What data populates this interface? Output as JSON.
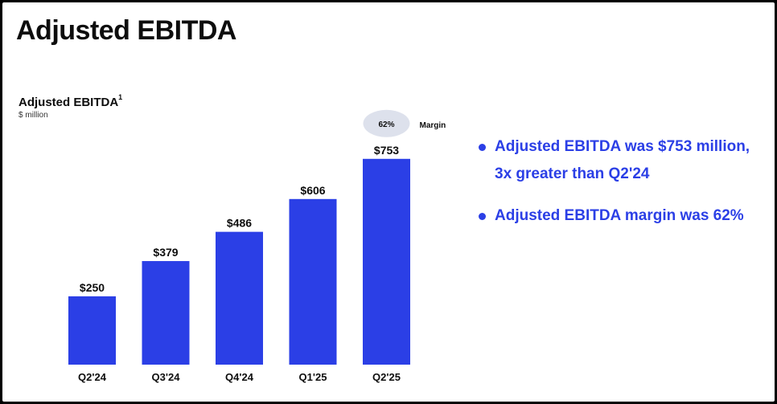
{
  "page": {
    "title": "Adjusted EBITDA"
  },
  "chart_heading": {
    "title": "Adjusted EBITDA",
    "footnote": "1",
    "unit": "$ million"
  },
  "chart_data": {
    "type": "bar",
    "title": "Adjusted EBITDA",
    "ylabel": "$ million",
    "categories": [
      "Q2'24",
      "Q3'24",
      "Q4'24",
      "Q1'25",
      "Q2'25"
    ],
    "values": [
      250,
      379,
      486,
      606,
      753
    ],
    "value_labels": [
      "$250",
      "$379",
      "$486",
      "$606",
      "$753"
    ],
    "ylim": [
      0,
      770
    ],
    "grid": false,
    "bar_color": "#2b3fe6",
    "annotation": {
      "category": "Q2'25",
      "value": "62%",
      "label": "Margin",
      "badge_color": "#dde1ec"
    }
  },
  "bullets": [
    "Adjusted EBITDA  was $753 million, 3x greater than Q2'24",
    "Adjusted EBITDA margin was 62%"
  ],
  "colors": {
    "accent": "#2b3fe6",
    "title": "#0d0d0d",
    "frame": "#000000"
  }
}
